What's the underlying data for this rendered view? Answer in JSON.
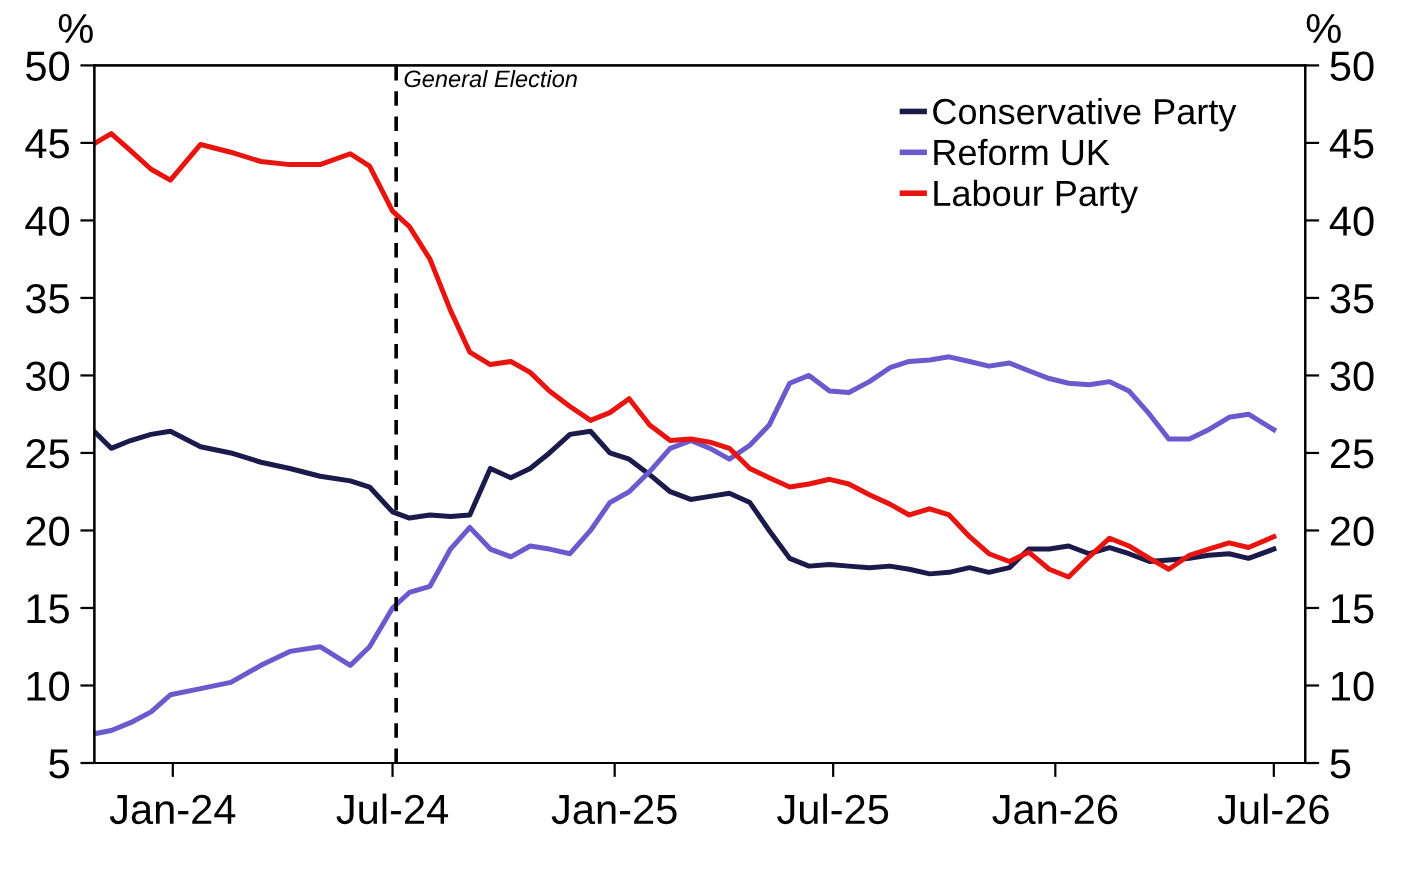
{
  "chart_data": {
    "type": "line",
    "x": [
      "2023-10-29",
      "2023-11-11",
      "2023-11-27",
      "2023-12-14",
      "2023-12-30",
      "2024-01-24",
      "2024-02-18",
      "2024-03-14",
      "2024-04-07",
      "2024-05-02",
      "2024-05-27",
      "2024-06-12",
      "2024-07-01",
      "2024-07-15",
      "2024-08-01",
      "2024-08-18",
      "2024-09-03",
      "2024-09-20",
      "2024-10-07",
      "2024-10-23",
      "2024-11-08",
      "2024-11-25",
      "2024-12-12",
      "2024-12-28",
      "2025-01-13",
      "2025-01-30",
      "2025-02-16",
      "2025-03-05",
      "2025-03-21",
      "2025-04-06",
      "2025-04-23",
      "2025-05-09",
      "2025-05-26",
      "2025-06-11",
      "2025-06-28",
      "2025-07-14",
      "2025-07-31",
      "2025-08-17",
      "2025-09-02",
      "2025-09-19",
      "2025-10-05",
      "2025-10-22",
      "2025-11-07",
      "2025-11-24",
      "2025-12-10",
      "2025-12-27",
      "2026-01-12",
      "2026-01-29",
      "2026-02-15",
      "2026-03-03",
      "2026-03-20",
      "2026-04-05",
      "2026-04-22",
      "2026-05-08",
      "2026-05-25",
      "2026-06-10",
      "2026-07-01"
    ],
    "series": [
      {
        "name": "Conservative Party",
        "color": "#1c1a4a",
        "values": [
          26.3,
          25.3,
          25.8,
          26.2,
          26.4,
          25.4,
          25.0,
          24.4,
          24.0,
          23.5,
          23.2,
          22.8,
          21.2,
          20.8,
          21.0,
          20.9,
          21.0,
          24.0,
          23.4,
          24.0,
          25.0,
          26.2,
          26.4,
          25.0,
          24.6,
          23.6,
          22.5,
          22.0,
          22.2,
          22.4,
          21.8,
          20.0,
          18.2,
          17.7,
          17.8,
          17.7,
          17.6,
          17.7,
          17.5,
          17.2,
          17.3,
          17.6,
          17.3,
          17.6,
          18.8,
          18.8,
          19.0,
          18.5,
          18.9,
          18.5,
          18.0,
          18.1,
          18.2,
          18.4,
          18.5,
          18.2,
          18.8
        ]
      },
      {
        "name": "Reform UK",
        "color": "#6a5acd",
        "values": [
          6.9,
          7.1,
          7.6,
          8.3,
          9.4,
          9.8,
          10.2,
          11.3,
          12.2,
          12.5,
          11.3,
          12.5,
          15.0,
          16.0,
          16.4,
          18.8,
          20.2,
          18.8,
          18.3,
          19.0,
          18.8,
          18.5,
          20.0,
          21.8,
          22.5,
          23.8,
          25.3,
          25.8,
          25.3,
          24.6,
          25.5,
          26.8,
          29.5,
          30.0,
          29.0,
          28.9,
          29.6,
          30.5,
          30.9,
          31.0,
          31.2,
          30.9,
          30.6,
          30.8,
          30.3,
          29.8,
          29.5,
          29.4,
          29.6,
          29.0,
          27.5,
          25.9,
          25.9,
          26.5,
          27.3,
          27.5,
          26.5
        ]
      },
      {
        "name": "Labour Party",
        "color": "#e8140f",
        "values": [
          45.0,
          45.6,
          44.5,
          43.3,
          42.6,
          44.9,
          44.4,
          43.8,
          43.6,
          43.6,
          44.3,
          43.5,
          40.6,
          39.6,
          37.5,
          34.2,
          31.5,
          30.7,
          30.9,
          30.2,
          29.0,
          28.0,
          27.1,
          27.6,
          28.5,
          26.8,
          25.8,
          25.9,
          25.7,
          25.3,
          24.0,
          23.4,
          22.8,
          23.0,
          23.3,
          23.0,
          22.3,
          21.7,
          21.0,
          21.4,
          21.0,
          19.6,
          18.5,
          18.0,
          18.6,
          17.5,
          17.0,
          18.3,
          19.5,
          19.0,
          18.2,
          17.5,
          18.4,
          18.8,
          19.2,
          18.9,
          19.6
        ]
      }
    ],
    "xlim": [
      "2023-10-28",
      "2026-07-27"
    ],
    "xticks": [
      {
        "value": "2024-01-01",
        "label": "Jan-24"
      },
      {
        "value": "2024-07-01",
        "label": "Jul-24"
      },
      {
        "value": "2025-01-01",
        "label": "Jan-25"
      },
      {
        "value": "2025-07-01",
        "label": "Jul-25"
      },
      {
        "value": "2026-01-01",
        "label": "Jan-26"
      },
      {
        "value": "2026-07-01",
        "label": "Jul-26"
      }
    ],
    "ylim": [
      5,
      50
    ],
    "yticks": [
      5,
      10,
      15,
      20,
      25,
      30,
      35,
      40,
      45,
      50
    ],
    "y2lim": [
      5,
      50
    ],
    "y2ticks": [
      5,
      10,
      15,
      20,
      25,
      30,
      35,
      40,
      45,
      50
    ],
    "ylabel": "%",
    "y2label": "%",
    "ref_lines": [
      {
        "axis": "x",
        "value": "2024-07-04",
        "label": "General Election",
        "color": "#000000",
        "line_style": "dashed"
      }
    ],
    "legend": "top right",
    "grid": false,
    "marker": "none",
    "line_style": "solid"
  }
}
